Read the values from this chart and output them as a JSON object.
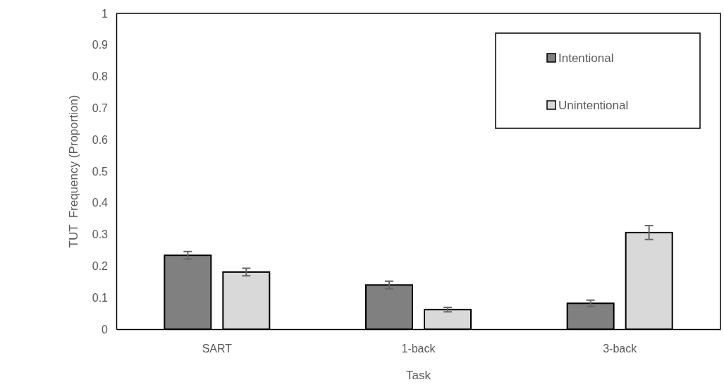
{
  "chart_data": {
    "type": "bar",
    "xlabel": "Task",
    "ylabel": "TUT  Frequency (Proportion)",
    "categories": [
      "SART",
      "1-back",
      "3-back"
    ],
    "series": [
      {
        "name": "Intentional",
        "color": "#808080",
        "values": [
          0.234,
          0.14,
          0.082
        ],
        "errors": [
          0.012,
          0.012,
          0.01
        ]
      },
      {
        "name": "Unintentional",
        "color": "#d9d9d9",
        "values": [
          0.181,
          0.062,
          0.306
        ],
        "errors": [
          0.012,
          0.007,
          0.022
        ]
      }
    ],
    "ylim": [
      0,
      1
    ],
    "yticks": [
      0,
      0.1,
      0.2,
      0.3,
      0.4,
      0.5,
      0.6,
      0.7,
      0.8,
      0.9,
      1
    ],
    "grid": false,
    "legend": "top right"
  }
}
